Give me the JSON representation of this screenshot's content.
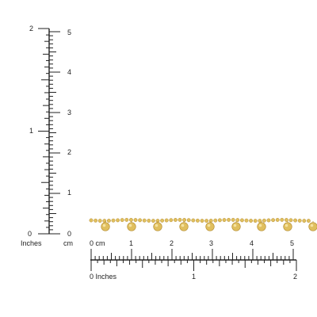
{
  "vertical_ruler": {
    "inch_labels": [
      "0",
      "1",
      "2"
    ],
    "inch_unit": "Inches",
    "cm_labels": [
      "0",
      "1",
      "2",
      "3",
      "4",
      "5"
    ],
    "cm_unit": "cm"
  },
  "horizontal_ruler": {
    "cm_labels": [
      "0 cm",
      "1",
      "2",
      "3",
      "4",
      "5"
    ],
    "inch_labels": [
      "0 Inches",
      "1",
      "2"
    ]
  },
  "colors": {
    "ruler_ink": "#222222",
    "gold": "#e0bf5e",
    "gold_dark": "#b8923a",
    "gold_light": "#f5e2a0"
  }
}
